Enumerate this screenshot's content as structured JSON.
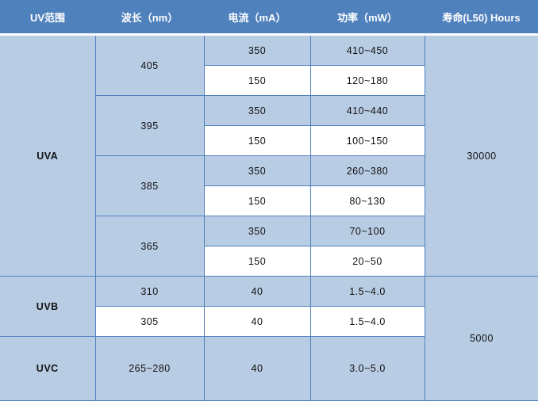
{
  "header": [
    "UV范围",
    "波长（nm）",
    "电流（mA）",
    "功率（mW）",
    "寿命(L50) Hours"
  ],
  "uva": {
    "label": "UVA",
    "lifetime": "30000",
    "groups": [
      {
        "wavelength": "405",
        "rows": [
          {
            "current": "350",
            "power": "410~450"
          },
          {
            "current": "150",
            "power": "120~180"
          }
        ]
      },
      {
        "wavelength": "395",
        "rows": [
          {
            "current": "350",
            "power": "410~440"
          },
          {
            "current": "150",
            "power": "100~150"
          }
        ]
      },
      {
        "wavelength": "385",
        "rows": [
          {
            "current": "350",
            "power": "260~380"
          },
          {
            "current": "150",
            "power": "80~130"
          }
        ]
      },
      {
        "wavelength": "365",
        "rows": [
          {
            "current": "350",
            "power": "70~100"
          },
          {
            "current": "150",
            "power": "20~50"
          }
        ]
      }
    ]
  },
  "uvb": {
    "label": "UVB",
    "rows": [
      {
        "wavelength": "310",
        "current": "40",
        "power": "1.5~4.0"
      },
      {
        "wavelength": "305",
        "current": "40",
        "power": "1.5~4.0"
      }
    ]
  },
  "uvc": {
    "label": "UVC",
    "wavelength": "265~280",
    "current": "40",
    "power": "3.0~5.0"
  },
  "uvbc_lifetime": "5000",
  "colors": {
    "header": "#4f81bd",
    "cell_blue": "#b8cce4",
    "cell_white": "#ffffff",
    "border": "#4f81bd"
  }
}
